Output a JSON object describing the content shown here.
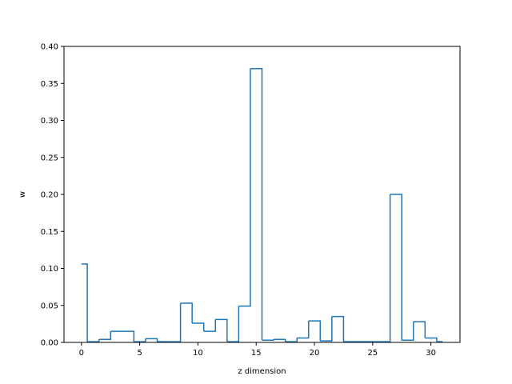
{
  "chart_data": {
    "type": "step",
    "title": "",
    "xlabel": "z dimension",
    "ylabel": "w",
    "xlim": [
      -1.5,
      32.5
    ],
    "ylim": [
      0,
      0.4
    ],
    "xticks": [
      0,
      5,
      10,
      15,
      20,
      25,
      30
    ],
    "yticks": [
      0.0,
      0.05,
      0.1,
      0.15,
      0.2,
      0.25,
      0.3,
      0.35,
      0.4
    ],
    "grid": false,
    "line_color": "#1f77b4",
    "series": [
      {
        "x": [
          0,
          1,
          2,
          3,
          4,
          5,
          6,
          7,
          8,
          9,
          10,
          11,
          12,
          13,
          14,
          15,
          16,
          17,
          18,
          19,
          20,
          21,
          22,
          23,
          24,
          25,
          26,
          27,
          28,
          29,
          30,
          31
        ],
        "values": [
          0.106,
          0.001,
          0.004,
          0.015,
          0.015,
          0.001,
          0.005,
          0.001,
          0.001,
          0.053,
          0.026,
          0.015,
          0.031,
          0.001,
          0.049,
          0.37,
          0.003,
          0.004,
          0.001,
          0.006,
          0.029,
          0.002,
          0.035,
          0.001,
          0.001,
          0.001,
          0.001,
          0.2,
          0.003,
          0.028,
          0.006,
          0.001
        ]
      }
    ]
  }
}
